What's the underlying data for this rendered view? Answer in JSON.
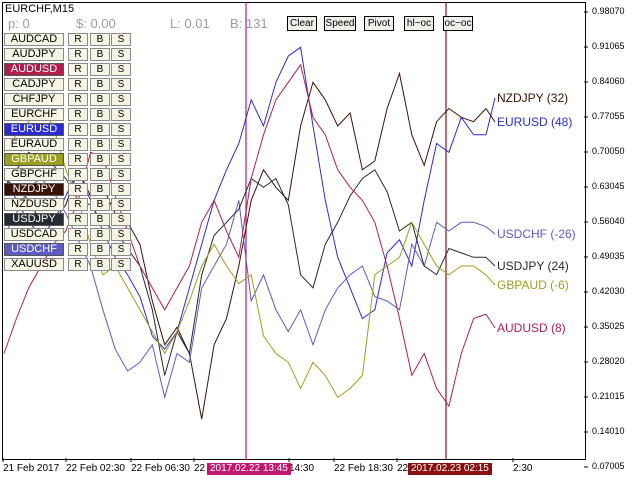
{
  "chart_title": "EURCHF,M15",
  "stats": {
    "p": "p: 0",
    "s": "$: 0.00",
    "l": "L: 0.01",
    "b": "B: 131"
  },
  "header_buttons": [
    "Clear",
    "Speed",
    "Pivot",
    "hl~oc",
    "oc~oc"
  ],
  "symbols": [
    {
      "name": "AUDCAD",
      "active": false,
      "color": ""
    },
    {
      "name": "AUDJPY",
      "active": false,
      "color": ""
    },
    {
      "name": "AUDUSD",
      "active": true,
      "color": "#b0204e"
    },
    {
      "name": "CADJPY",
      "active": false,
      "color": ""
    },
    {
      "name": "CHFJPY",
      "active": false,
      "color": ""
    },
    {
      "name": "EURCHF",
      "active": false,
      "color": ""
    },
    {
      "name": "EURUSD",
      "active": true,
      "color": "#2b2bd8"
    },
    {
      "name": "EURAUD",
      "active": false,
      "color": ""
    },
    {
      "name": "GBPAUD",
      "active": true,
      "color": "#9ca01f"
    },
    {
      "name": "GBPCHF",
      "active": false,
      "color": ""
    },
    {
      "name": "NZDJPY",
      "active": true,
      "color": "#3a1206"
    },
    {
      "name": "NZDUSD",
      "active": false,
      "color": ""
    },
    {
      "name": "USDJPY",
      "active": true,
      "color": "#262a33"
    },
    {
      "name": "USDCAD",
      "active": false,
      "color": ""
    },
    {
      "name": "USDCHF",
      "active": true,
      "color": "#5c5cc4"
    },
    {
      "name": "XAUUSD",
      "active": false,
      "color": ""
    }
  ],
  "row_buttons": {
    "r": "R",
    "b": "B",
    "s": "S"
  },
  "y_ticks": [
    "0.98070",
    "0.91065",
    "0.84060",
    "0.77055",
    "0.70050",
    "0.63045",
    "0.56040",
    "0.49035",
    "0.42030",
    "0.35025",
    "0.28020",
    "0.21015",
    "0.14010",
    "0.07005"
  ],
  "x_ticks": [
    "21 Feb 2017",
    "22 Feb 02:30",
    "22 Feb 06:30",
    "22",
    "14:30",
    "22 Feb 18:30",
    "22 F",
    "2:30"
  ],
  "markers": [
    {
      "label": "2017.02.22 13:45",
      "color": "#c0186e"
    },
    {
      "label": "2017.02.23 02:15",
      "color": "#8a1010"
    }
  ],
  "series_labels": [
    {
      "text": "NZDJPY (32)",
      "color": "#3a1206"
    },
    {
      "text": "EURUSD (48)",
      "color": "#2b2bd8"
    },
    {
      "text": "USDCHF (-26)",
      "color": "#5c5cc4"
    },
    {
      "text": "USDJPY (24)",
      "color": "#262a33"
    },
    {
      "text": "GBPAUD (-6)",
      "color": "#9ca01f"
    },
    {
      "text": "AUDUSD (8)",
      "color": "#b0204e"
    }
  ],
  "chart_data": {
    "type": "line",
    "ylim": [
      0.0,
      0.9807
    ],
    "series": [
      {
        "name": "EURUSD",
        "color": "#2b2bd8",
        "values": [
          0.62,
          0.55,
          0.5,
          0.47,
          0.5,
          0.56,
          0.62,
          0.55,
          0.48,
          0.42,
          0.38,
          0.33,
          0.24,
          0.21,
          0.25,
          0.35,
          0.45,
          0.55,
          0.62,
          0.68,
          0.78,
          0.72,
          0.82,
          0.88,
          0.9,
          0.72,
          0.55,
          0.42,
          0.35,
          0.28,
          0.3,
          0.43,
          0.46,
          0.4,
          0.55,
          0.68,
          0.66,
          0.74,
          0.7,
          0.7
        ]
      },
      {
        "name": "NZDJPY",
        "color": "#3a1206",
        "values": [
          0.6,
          0.58,
          0.55,
          0.5,
          0.5,
          0.54,
          0.62,
          0.56,
          0.58,
          0.52,
          0.5,
          0.45,
          0.32,
          0.22,
          0.26,
          0.2,
          0.05,
          0.22,
          0.28,
          0.4,
          0.55,
          0.62,
          0.58,
          0.55,
          0.72,
          0.82,
          0.78,
          0.72,
          0.75,
          0.62,
          0.64,
          0.76,
          0.84,
          0.7,
          0.63,
          0.73,
          0.76,
          0.74,
          0.73,
          0.76
        ]
      },
      {
        "name": "USDCHF",
        "color": "#5c5cc4",
        "values": [
          0.47,
          0.52,
          0.58,
          0.6,
          0.57,
          0.52,
          0.46,
          0.4,
          0.3,
          0.21,
          0.16,
          0.18,
          0.22,
          0.1,
          0.2,
          0.18,
          0.35,
          0.4,
          0.45,
          0.55,
          0.32,
          0.38,
          0.3,
          0.25,
          0.3,
          0.22,
          0.3,
          0.35,
          0.38,
          0.4,
          0.33,
          0.32,
          0.3,
          0.45,
          0.4,
          0.5,
          0.48,
          0.5,
          0.5,
          0.49
        ]
      },
      {
        "name": "USDJPY",
        "color": "#262a33",
        "values": [
          0.58,
          0.62,
          0.66,
          0.64,
          0.63,
          0.6,
          0.55,
          0.54,
          0.5,
          0.48,
          0.44,
          0.4,
          0.3,
          0.15,
          0.25,
          0.2,
          0.38,
          0.47,
          0.5,
          0.53,
          0.6,
          0.58,
          0.6,
          0.54,
          0.38,
          0.35,
          0.45,
          0.5,
          0.56,
          0.6,
          0.62,
          0.57,
          0.48,
          0.5,
          0.4,
          0.38,
          0.44,
          0.43,
          0.42,
          0.42
        ]
      },
      {
        "name": "GBPAUD",
        "color": "#9ca01f",
        "values": [
          0.66,
          0.7,
          0.73,
          0.76,
          0.72,
          0.62,
          0.55,
          0.45,
          0.38,
          0.4,
          0.35,
          0.3,
          0.25,
          0.2,
          0.25,
          0.32,
          0.4,
          0.45,
          0.4,
          0.36,
          0.38,
          0.24,
          0.2,
          0.18,
          0.12,
          0.18,
          0.15,
          0.1,
          0.12,
          0.15,
          0.38,
          0.4,
          0.42,
          0.5,
          0.45,
          0.4,
          0.38,
          0.4,
          0.4,
          0.38
        ]
      },
      {
        "name": "AUDUSD",
        "color": "#b0204e",
        "values": [
          0.2,
          0.28,
          0.35,
          0.4,
          0.45,
          0.48,
          0.55,
          0.66,
          0.65,
          0.56,
          0.48,
          0.4,
          0.35,
          0.3,
          0.35,
          0.4,
          0.5,
          0.55,
          0.48,
          0.42,
          0.6,
          0.7,
          0.78,
          0.82,
          0.86,
          0.74,
          0.7,
          0.62,
          0.58,
          0.55,
          0.5,
          0.4,
          0.28,
          0.15,
          0.2,
          0.12,
          0.08,
          0.2,
          0.28,
          0.29
        ]
      }
    ]
  }
}
